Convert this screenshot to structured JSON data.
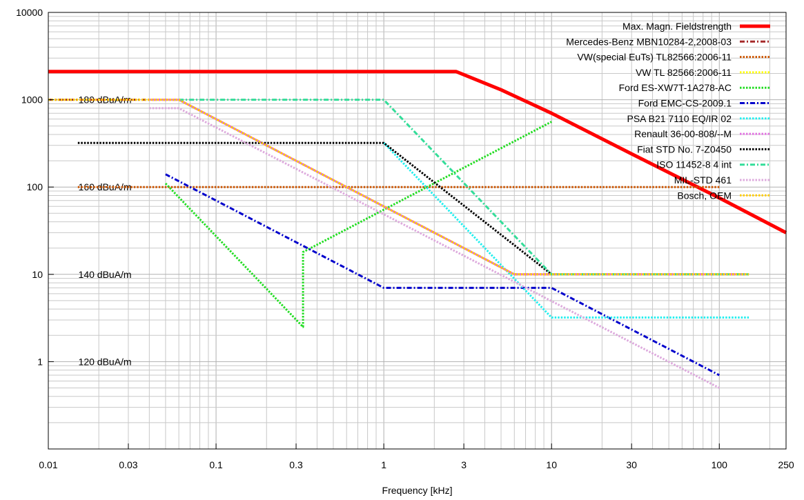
{
  "chart_data": {
    "type": "line",
    "xlabel": "Frequency [kHz]",
    "ylabel": "",
    "xscale": "log",
    "yscale": "log",
    "xlim": [
      0.01,
      250
    ],
    "ylim": [
      0.1,
      10000
    ],
    "grid": true,
    "legend_position": "top-right",
    "x_ticks": [
      {
        "value": 0.01,
        "label": "0.01"
      },
      {
        "value": 0.03,
        "label": "0.03"
      },
      {
        "value": 0.1,
        "label": "0.1"
      },
      {
        "value": 0.3,
        "label": "0.3"
      },
      {
        "value": 1,
        "label": "1"
      },
      {
        "value": 3,
        "label": "3"
      },
      {
        "value": 10,
        "label": "10"
      },
      {
        "value": 30,
        "label": "30"
      },
      {
        "value": 100,
        "label": "100"
      },
      {
        "value": 250,
        "label": "250"
      }
    ],
    "y_ticks": [
      {
        "value": 1,
        "label": "1"
      },
      {
        "value": 10,
        "label": "10"
      },
      {
        "value": 100,
        "label": "100"
      },
      {
        "value": 1000,
        "label": "1000"
      },
      {
        "value": 10000,
        "label": "10000"
      }
    ],
    "annotations": [
      {
        "text": "180 dBuA/m",
        "x": 0.0125,
        "y": 1000
      },
      {
        "text": "160 dBuA/m",
        "x": 0.0125,
        "y": 100
      },
      {
        "text": "140 dBuA/m",
        "x": 0.0125,
        "y": 10
      },
      {
        "text": "120 dBuA/m",
        "x": 0.0125,
        "y": 1
      }
    ],
    "series": [
      {
        "name": "Max. Magn. Fieldstrength",
        "color": "#ff0000",
        "dash": "solid",
        "width": 5,
        "points": [
          [
            0.01,
            2100
          ],
          [
            2.7,
            2100
          ],
          [
            5,
            1300
          ],
          [
            10,
            700
          ],
          [
            30,
            240
          ],
          [
            100,
            75
          ],
          [
            250,
            30
          ]
        ]
      },
      {
        "name": "Mercedes-Benz MBN10284-2,2008-03",
        "color": "#a52a2a",
        "dash": "dashdot",
        "width": 3,
        "points": [
          [
            0.01,
            1000
          ],
          [
            0.06,
            1000
          ],
          [
            6,
            10
          ],
          [
            150,
            10
          ]
        ]
      },
      {
        "name": "VW(special EuTs) TL82566:2006-11",
        "color": "#cc5500",
        "dash": "dotted",
        "width": 3,
        "points": [
          [
            0.015,
            100
          ],
          [
            100,
            100
          ]
        ]
      },
      {
        "name": "VW TL 82566:2006-11",
        "color": "#ffff00",
        "dash": "dotted",
        "width": 3,
        "points": [
          [
            0.01,
            1000
          ],
          [
            0.06,
            1000
          ],
          [
            6,
            10
          ],
          [
            150,
            10
          ]
        ]
      },
      {
        "name": "Ford ES-XW7T-1A278-AC",
        "color": "#22dd22",
        "dash": "dotted",
        "width": 3,
        "points": [
          [
            0.05,
            110
          ],
          [
            0.33,
            2.5
          ],
          [
            0.33,
            18
          ],
          [
            10,
            560
          ]
        ]
      },
      {
        "name": "Ford EMC-CS-2009.1",
        "color": "#0000cc",
        "dash": "dashdot",
        "width": 3,
        "points": [
          [
            0.05,
            140
          ],
          [
            1,
            7
          ],
          [
            10,
            7
          ],
          [
            100,
            0.7
          ]
        ]
      },
      {
        "name": "PSA B21 7110 EQ/IR 02",
        "color": "#22eeee",
        "dash": "dotted",
        "width": 3,
        "points": [
          [
            1,
            320
          ],
          [
            10,
            3.2
          ],
          [
            150,
            3.2
          ]
        ]
      },
      {
        "name": "Renault 36-00-808/--M",
        "color": "#e070e0",
        "dash": "dotted",
        "width": 3,
        "points": [
          [
            0.04,
            1000
          ],
          [
            0.06,
            1000
          ],
          [
            6,
            10
          ],
          [
            150,
            10
          ]
        ]
      },
      {
        "name": "Fiat STD No. 7-Z0450",
        "color": "#000000",
        "dash": "dotted",
        "width": 3,
        "points": [
          [
            0.015,
            320
          ],
          [
            1,
            320
          ],
          [
            10,
            10
          ]
        ]
      },
      {
        "name": "ISO 11452-8 4 int",
        "color": "#33dd99",
        "dash": "dashdot",
        "width": 3,
        "points": [
          [
            0.06,
            1000
          ],
          [
            1,
            1000
          ],
          [
            10,
            10
          ],
          [
            150,
            10
          ]
        ]
      },
      {
        "name": "MIL-STD 461",
        "color": "#ddaadd",
        "dash": "dotted",
        "width": 3,
        "points": [
          [
            0.04,
            800
          ],
          [
            0.06,
            800
          ],
          [
            100,
            0.5
          ]
        ]
      },
      {
        "name": "Bosch, OEM",
        "color": "#ffcc00",
        "dash": "dotted",
        "width": 3,
        "points": [
          [
            0.01,
            1000
          ],
          [
            0.06,
            1000
          ],
          [
            6,
            10
          ],
          [
            150,
            10
          ]
        ]
      }
    ]
  }
}
